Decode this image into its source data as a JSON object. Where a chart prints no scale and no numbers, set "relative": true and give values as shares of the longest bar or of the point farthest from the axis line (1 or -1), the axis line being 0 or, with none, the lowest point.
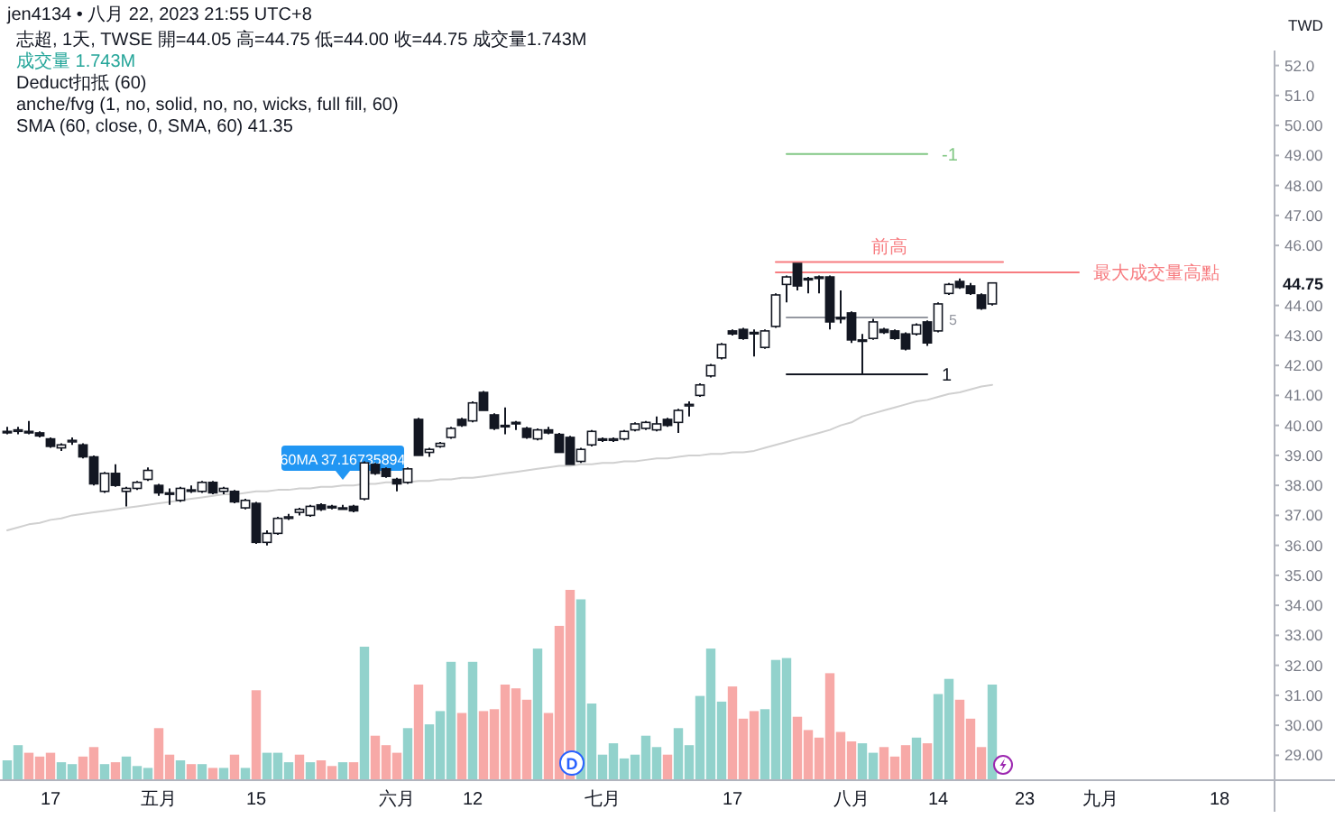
{
  "chart_data": [
    {
      "type": "candlestick",
      "title": "jen4134 • 八月 22, 2023 21:55 UTC+8",
      "subtitle": "志超, 1天, TWSE 開=44.05 高=44.75 低=44.00 收=44.75 成交量1.743M",
      "ylabel": "TWD",
      "categories": [
        null,
        null,
        null,
        null,
        "17",
        null,
        null,
        null,
        null,
        null,
        null,
        null,
        null,
        null,
        "五月",
        null,
        null,
        null,
        null,
        null,
        null,
        null,
        null,
        "15",
        null,
        null,
        null,
        null,
        null,
        null,
        null,
        null,
        null,
        null,
        null,
        null,
        "六月",
        null,
        null,
        null,
        null,
        null,
        null,
        "12",
        null,
        null,
        null,
        null,
        null,
        null,
        null,
        null,
        null,
        null,
        null,
        "七月",
        null,
        null,
        null,
        null,
        null,
        null,
        null,
        null,
        null,
        null,
        null,
        "17",
        null,
        null,
        null,
        null,
        null,
        null,
        null,
        null,
        null,
        null,
        "八月",
        null,
        null,
        null,
        null,
        null,
        null,
        null,
        "14",
        null,
        null,
        null,
        null,
        null,
        null,
        null,
        "23",
        null,
        null,
        null,
        null,
        null,
        null,
        "九月",
        null,
        null,
        null,
        null,
        null,
        null,
        null,
        null,
        null,
        null,
        "18",
        null,
        null
      ],
      "ohlc": [
        [
          39.8,
          39.95,
          39.7,
          39.8
        ],
        [
          39.8,
          39.95,
          39.7,
          39.85
        ],
        [
          39.8,
          40.15,
          39.7,
          39.75
        ],
        [
          39.75,
          39.8,
          39.6,
          39.65
        ],
        [
          39.55,
          39.6,
          39.25,
          39.3
        ],
        [
          39.25,
          39.4,
          39.15,
          39.35
        ],
        [
          39.45,
          39.6,
          39.35,
          39.5
        ],
        [
          39.35,
          39.4,
          38.9,
          38.95
        ],
        [
          38.95,
          39.0,
          38.0,
          38.05
        ],
        [
          37.8,
          38.45,
          37.75,
          38.4
        ],
        [
          38.4,
          38.7,
          37.95,
          38.0
        ],
        [
          37.8,
          37.95,
          37.3,
          37.9
        ],
        [
          37.9,
          38.15,
          37.85,
          38.1
        ],
        [
          38.2,
          38.6,
          38.15,
          38.5
        ],
        [
          38.0,
          38.05,
          37.65,
          37.75
        ],
        [
          37.75,
          37.9,
          37.35,
          37.7
        ],
        [
          37.5,
          37.95,
          37.45,
          37.9
        ],
        [
          37.85,
          38.0,
          37.75,
          37.85
        ],
        [
          37.8,
          38.15,
          37.75,
          38.1
        ],
        [
          38.1,
          38.15,
          37.7,
          37.75
        ],
        [
          37.8,
          37.95,
          37.7,
          37.9
        ],
        [
          37.8,
          37.85,
          37.4,
          37.45
        ],
        [
          37.25,
          37.55,
          37.2,
          37.5
        ],
        [
          37.4,
          37.45,
          36.05,
          36.1
        ],
        [
          36.1,
          36.5,
          36.0,
          36.4
        ],
        [
          36.4,
          36.95,
          36.35,
          36.9
        ],
        [
          36.9,
          37.05,
          36.85,
          36.95
        ],
        [
          37.1,
          37.25,
          37.0,
          37.2
        ],
        [
          37.0,
          37.35,
          36.95,
          37.3
        ],
        [
          37.35,
          37.4,
          37.15,
          37.2
        ],
        [
          37.3,
          37.35,
          37.2,
          37.25
        ],
        [
          37.25,
          37.35,
          37.2,
          37.25
        ],
        [
          37.3,
          37.35,
          37.1,
          37.15
        ],
        [
          37.55,
          38.8,
          37.5,
          38.75
        ],
        [
          38.7,
          38.75,
          38.35,
          38.4
        ],
        [
          38.55,
          38.6,
          38.25,
          38.3
        ],
        [
          38.2,
          38.25,
          37.8,
          38.05
        ],
        [
          38.1,
          38.6,
          38.05,
          38.55
        ],
        [
          40.2,
          40.25,
          39.0,
          39.0
        ],
        [
          39.1,
          39.25,
          38.95,
          39.2
        ],
        [
          39.3,
          39.45,
          39.25,
          39.4
        ],
        [
          39.6,
          39.95,
          39.55,
          39.9
        ],
        [
          40.2,
          40.25,
          39.95,
          40.0
        ],
        [
          40.15,
          40.8,
          40.1,
          40.75
        ],
        [
          41.1,
          41.15,
          40.5,
          40.5
        ],
        [
          40.35,
          40.4,
          39.85,
          39.9
        ],
        [
          40.0,
          40.6,
          39.7,
          40.0
        ],
        [
          40.1,
          40.15,
          39.85,
          40.05
        ],
        [
          39.9,
          39.95,
          39.55,
          39.6
        ],
        [
          39.55,
          39.9,
          39.5,
          39.85
        ],
        [
          39.85,
          39.95,
          39.7,
          39.75
        ],
        [
          39.7,
          39.75,
          39.1,
          39.1
        ],
        [
          39.6,
          39.65,
          38.7,
          38.7
        ],
        [
          38.8,
          39.25,
          38.75,
          39.2
        ],
        [
          39.35,
          39.85,
          39.3,
          39.8
        ],
        [
          39.55,
          39.6,
          39.45,
          39.55
        ],
        [
          39.5,
          39.6,
          39.45,
          39.55
        ],
        [
          39.55,
          39.85,
          39.5,
          39.8
        ],
        [
          39.85,
          40.1,
          39.8,
          40.05
        ],
        [
          39.9,
          40.15,
          39.85,
          40.1
        ],
        [
          39.85,
          40.3,
          39.8,
          40.05
        ],
        [
          40.2,
          40.25,
          39.95,
          40.0
        ],
        [
          40.1,
          40.55,
          39.75,
          40.5
        ],
        [
          40.65,
          40.8,
          40.3,
          40.7
        ],
        [
          41.0,
          41.4,
          40.95,
          41.35
        ],
        [
          41.65,
          42.05,
          41.6,
          42.0
        ],
        [
          42.25,
          42.75,
          42.2,
          42.7
        ],
        [
          43.15,
          43.2,
          43.0,
          43.05
        ],
        [
          43.2,
          43.25,
          42.85,
          42.9
        ],
        [
          43.1,
          43.2,
          42.3,
          43.1
        ],
        [
          42.6,
          43.2,
          42.55,
          43.15
        ],
        [
          43.3,
          44.4,
          43.25,
          44.35
        ],
        [
          44.7,
          45.0,
          44.1,
          44.95
        ],
        [
          45.4,
          45.4,
          44.5,
          44.65
        ],
        [
          44.9,
          44.95,
          44.4,
          44.9
        ],
        [
          44.95,
          45.0,
          44.4,
          44.9
        ],
        [
          44.95,
          45.0,
          43.2,
          43.45
        ],
        [
          43.6,
          44.5,
          43.4,
          43.55
        ],
        [
          43.75,
          43.8,
          42.75,
          42.85
        ],
        [
          42.85,
          43.05,
          41.7,
          42.85
        ],
        [
          42.9,
          43.55,
          42.85,
          43.45
        ],
        [
          43.2,
          43.25,
          43.05,
          43.1
        ],
        [
          43.15,
          43.2,
          42.85,
          42.9
        ],
        [
          43.05,
          43.1,
          42.5,
          42.55
        ],
        [
          43.05,
          43.4,
          43.0,
          43.35
        ],
        [
          43.45,
          43.5,
          42.65,
          42.75
        ],
        [
          43.15,
          44.1,
          43.1,
          44.05
        ],
        [
          44.4,
          44.75,
          44.35,
          44.7
        ],
        [
          44.8,
          44.9,
          44.55,
          44.6
        ],
        [
          44.65,
          44.75,
          44.35,
          44.4
        ],
        [
          44.35,
          44.4,
          43.85,
          43.9
        ],
        [
          44.05,
          44.75,
          44.0,
          44.75
        ],
        null,
        null,
        null,
        null,
        null,
        null,
        null,
        null,
        null,
        null,
        null,
        null,
        null,
        null,
        null,
        null,
        null,
        null,
        null,
        null,
        null,
        null,
        null
      ],
      "ylim": [
        28.2,
        52.5
      ],
      "yticks": [
        {
          "value": 29,
          "label": "29.00"
        },
        {
          "value": 30,
          "label": "30.00"
        },
        {
          "value": 31,
          "label": "31.00"
        },
        {
          "value": 32,
          "label": "32.00"
        },
        {
          "value": 33,
          "label": "33.00"
        },
        {
          "value": 34,
          "label": "34.00"
        },
        {
          "value": 35,
          "label": "35.00"
        },
        {
          "value": 36,
          "label": "36.00"
        },
        {
          "value": 37,
          "label": "37.00"
        },
        {
          "value": 38,
          "label": "38.00"
        },
        {
          "value": 39,
          "label": "39.00"
        },
        {
          "value": 40,
          "label": "40.00"
        },
        {
          "value": 41,
          "label": "41.00"
        },
        {
          "value": 42,
          "label": "42.00"
        },
        {
          "value": 43,
          "label": "43.00"
        },
        {
          "value": 44,
          "label": "44.00"
        },
        {
          "value": 46,
          "label": "46.00"
        },
        {
          "value": 47,
          "label": "47.00"
        },
        {
          "value": 48,
          "label": "48.00"
        },
        {
          "value": 49,
          "label": "49.00"
        },
        {
          "value": 50,
          "label": "50.00"
        },
        {
          "value": 51,
          "label": "51.0"
        },
        {
          "value": 52,
          "label": "52.0"
        }
      ],
      "series": [
        {
          "type": "line",
          "color": "#d0d0d0",
          "values": [
            36.5,
            36.6,
            36.7,
            36.75,
            36.85,
            36.9,
            37.0,
            37.05,
            37.1,
            37.15,
            37.2,
            37.25,
            37.3,
            37.35,
            37.4,
            37.45,
            37.5,
            37.55,
            37.6,
            37.65,
            37.7,
            37.7,
            37.75,
            37.8,
            37.8,
            37.85,
            37.85,
            37.9,
            37.9,
            37.95,
            37.95,
            38.0,
            38.0,
            38.05,
            38.05,
            38.1,
            38.1,
            38.1,
            38.15,
            38.15,
            38.2,
            38.2,
            38.25,
            38.25,
            38.3,
            38.35,
            38.4,
            38.45,
            38.5,
            38.55,
            38.6,
            38.65,
            38.65,
            38.7,
            38.7,
            38.75,
            38.75,
            38.8,
            38.8,
            38.85,
            38.9,
            38.9,
            38.95,
            39.0,
            39.0,
            39.05,
            39.05,
            39.1,
            39.1,
            39.15,
            39.25,
            39.35,
            39.45,
            39.55,
            39.65,
            39.75,
            39.85,
            40.0,
            40.1,
            40.3,
            40.4,
            40.5,
            40.6,
            40.7,
            40.8,
            40.85,
            40.95,
            41.05,
            41.1,
            41.2,
            41.3,
            41.35,
            null,
            null,
            null,
            null,
            null,
            null,
            null,
            null,
            null,
            null,
            null,
            null,
            null,
            null,
            null,
            null,
            null,
            null,
            null,
            null,
            null,
            null,
            null
          ]
        },
        {
          "type": "line",
          "name": "前高",
          "color": "#f77c80",
          "values": [
            null,
            null,
            null,
            null,
            null,
            null,
            null,
            null,
            null,
            null,
            null,
            null,
            null,
            null,
            null,
            null,
            null,
            null,
            null,
            null,
            null,
            null,
            null,
            null,
            null,
            null,
            null,
            null,
            null,
            null,
            null,
            null,
            null,
            null,
            null,
            null,
            null,
            null,
            null,
            null,
            null,
            null,
            null,
            null,
            null,
            null,
            null,
            null,
            null,
            null,
            null,
            null,
            null,
            null,
            null,
            null,
            null,
            null,
            null,
            null,
            null,
            null,
            null,
            null,
            null,
            null,
            null,
            null,
            null,
            null,
            null,
            45.45,
            45.45,
            45.45,
            45.45,
            45.45,
            45.45,
            45.45,
            45.45,
            45.45,
            45.45,
            45.45,
            45.45,
            45.45,
            45.45,
            45.45,
            45.45,
            45.45,
            45.45,
            45.45,
            45.45,
            45.45,
            45.45,
            null,
            null,
            null,
            null,
            null,
            null,
            null,
            null,
            null,
            null,
            null,
            null,
            null,
            null,
            null,
            null,
            null,
            null,
            null,
            null,
            null,
            null
          ]
        },
        {
          "type": "line",
          "name": "最大成交量高點",
          "color": "#f77c80",
          "values": [
            null,
            null,
            null,
            null,
            null,
            null,
            null,
            null,
            null,
            null,
            null,
            null,
            null,
            null,
            null,
            null,
            null,
            null,
            null,
            null,
            null,
            null,
            null,
            null,
            null,
            null,
            null,
            null,
            null,
            null,
            null,
            null,
            null,
            null,
            null,
            null,
            null,
            null,
            null,
            null,
            null,
            null,
            null,
            null,
            null,
            null,
            null,
            null,
            null,
            null,
            null,
            null,
            null,
            null,
            null,
            null,
            null,
            null,
            null,
            null,
            null,
            null,
            null,
            null,
            null,
            null,
            null,
            null,
            null,
            null,
            null,
            45.1,
            45.1,
            45.1,
            45.1,
            45.1,
            45.1,
            45.1,
            45.1,
            45.1,
            45.1,
            45.1,
            45.1,
            45.1,
            45.1,
            45.1,
            45.1,
            45.1,
            45.1,
            45.1,
            45.1,
            45.1,
            45.1,
            45.1,
            45.1,
            45.1,
            45.1,
            45.1,
            45.1,
            45.1,
            null,
            null,
            null,
            null,
            null,
            null,
            null,
            null,
            null,
            null,
            null,
            null,
            null,
            null,
            null
          ]
        },
        {
          "type": "line",
          "name": "-1",
          "color": "#81c784",
          "values": [
            null,
            null,
            null,
            null,
            null,
            null,
            null,
            null,
            null,
            null,
            null,
            null,
            null,
            null,
            null,
            null,
            null,
            null,
            null,
            null,
            null,
            null,
            null,
            null,
            null,
            null,
            null,
            null,
            null,
            null,
            null,
            null,
            null,
            null,
            null,
            null,
            null,
            null,
            null,
            null,
            null,
            null,
            null,
            null,
            null,
            null,
            null,
            null,
            null,
            null,
            null,
            null,
            null,
            null,
            null,
            null,
            null,
            null,
            null,
            null,
            null,
            null,
            null,
            null,
            null,
            null,
            null,
            null,
            null,
            null,
            null,
            null,
            49.05,
            49.05,
            49.05,
            49.05,
            49.05,
            49.05,
            49.05,
            49.05,
            49.05,
            49.05,
            49.05,
            49.05,
            49.05,
            49.05,
            null,
            null,
            null,
            null,
            null,
            null,
            null,
            null,
            null,
            null,
            null,
            null,
            null,
            null,
            null,
            null,
            null,
            null,
            null,
            null,
            null,
            null,
            null,
            null,
            null,
            null,
            null,
            null,
            null
          ]
        },
        {
          "type": "line",
          "name": "1",
          "color": "#131722",
          "values": [
            null,
            null,
            null,
            null,
            null,
            null,
            null,
            null,
            null,
            null,
            null,
            null,
            null,
            null,
            null,
            null,
            null,
            null,
            null,
            null,
            null,
            null,
            null,
            null,
            null,
            null,
            null,
            null,
            null,
            null,
            null,
            null,
            null,
            null,
            null,
            null,
            null,
            null,
            null,
            null,
            null,
            null,
            null,
            null,
            null,
            null,
            null,
            null,
            null,
            null,
            null,
            null,
            null,
            null,
            null,
            null,
            null,
            null,
            null,
            null,
            null,
            null,
            null,
            null,
            null,
            null,
            null,
            null,
            null,
            null,
            null,
            null,
            41.7,
            41.7,
            41.7,
            41.7,
            41.7,
            41.7,
            41.7,
            41.7,
            41.7,
            41.7,
            41.7,
            41.7,
            41.7,
            41.7,
            null,
            null,
            null,
            null,
            null,
            null,
            null,
            null,
            null,
            null,
            null,
            null,
            null,
            null,
            null,
            null,
            null,
            null,
            null,
            null,
            null,
            null,
            null,
            null,
            null,
            null,
            null,
            null,
            null
          ]
        },
        {
          "type": "line",
          "color": "#9598a1",
          "values": [
            null,
            null,
            null,
            null,
            null,
            null,
            null,
            null,
            null,
            null,
            null,
            null,
            null,
            null,
            null,
            null,
            null,
            null,
            null,
            null,
            null,
            null,
            null,
            null,
            null,
            null,
            null,
            null,
            null,
            null,
            null,
            null,
            null,
            null,
            null,
            null,
            null,
            null,
            null,
            null,
            null,
            null,
            null,
            null,
            null,
            null,
            null,
            null,
            null,
            null,
            null,
            null,
            null,
            null,
            null,
            null,
            null,
            null,
            null,
            null,
            null,
            null,
            null,
            null,
            null,
            null,
            null,
            null,
            null,
            null,
            null,
            null,
            43.6,
            43.6,
            43.6,
            43.6,
            43.6,
            43.6,
            43.6,
            43.6,
            43.6,
            43.6,
            43.6,
            43.6,
            43.6,
            43.6,
            null,
            null,
            null,
            null,
            null,
            null,
            null,
            null,
            null,
            null,
            null,
            null,
            null,
            null,
            null,
            null,
            null,
            null,
            null,
            null,
            null,
            null,
            null,
            null,
            null,
            null,
            null,
            null,
            null
          ]
        }
      ],
      "annotations": [
        "成交量 1.743M",
        "Deduct扣抵 (60)",
        "anche/fvg (1, no, solid, no, no, wicks, full fill, 60)",
        "SMA (60, close, 0, SMA, 60) 41.35",
        "60MA 37.16735894",
        "44.75",
        "D",
        "5"
      ]
    },
    {
      "type": "bar",
      "relative": true,
      "categories": [
        null,
        null,
        null,
        null,
        null,
        null,
        null,
        null,
        null,
        null,
        null,
        null,
        null,
        null,
        null,
        null,
        null,
        null,
        null,
        null,
        null,
        null,
        null,
        null,
        null,
        null,
        null,
        null,
        null,
        null,
        null,
        null,
        null,
        null,
        null,
        null,
        null,
        null,
        null,
        null,
        null,
        null,
        null,
        null,
        null,
        null,
        null,
        null,
        null,
        null,
        null,
        null,
        null,
        null,
        null,
        null,
        null,
        null,
        null,
        null,
        null,
        null,
        null,
        null,
        null,
        null,
        null,
        null,
        null,
        null,
        null,
        null,
        null,
        null,
        null,
        null,
        null,
        null,
        null,
        null,
        null,
        null,
        null,
        null,
        null,
        null,
        null,
        null,
        null,
        null,
        null,
        null
      ],
      "values": [
        0.1,
        0.18,
        0.14,
        0.12,
        0.14,
        0.09,
        0.08,
        0.12,
        0.17,
        0.08,
        0.09,
        0.12,
        0.07,
        0.06,
        0.27,
        0.13,
        0.1,
        0.08,
        0.08,
        0.06,
        0.06,
        0.13,
        0.06,
        0.47,
        0.14,
        0.14,
        0.09,
        0.13,
        0.09,
        0.1,
        0.07,
        0.09,
        0.09,
        0.7,
        0.23,
        0.18,
        0.14,
        0.27,
        0.5,
        0.29,
        0.36,
        0.62,
        0.35,
        0.62,
        0.36,
        0.37,
        0.5,
        0.48,
        0.42,
        0.69,
        0.35,
        0.81,
        1,
        0.95,
        0.4,
        0.13,
        0.19,
        0.11,
        0.13,
        0.23,
        0.17,
        0.13,
        0.27,
        0.18,
        0.44,
        0.69,
        0.41,
        0.49,
        0.32,
        0.36,
        0.37,
        0.63,
        0.64,
        0.33,
        0.26,
        0.22,
        0.56,
        0.25,
        0.2,
        0.19,
        0.14,
        0.17,
        0.12,
        0.18,
        0.22,
        0.19,
        0.45,
        0.53,
        0.42,
        0.32,
        0.17,
        0.5
      ],
      "colors": [
        "#92d2cc",
        "#92d2cc",
        "#f7a9a7",
        "#f7a9a7",
        "#f7a9a7",
        "#92d2cc",
        "#92d2cc",
        "#f7a9a7",
        "#f7a9a7",
        "#92d2cc",
        "#f7a9a7",
        "#92d2cc",
        "#92d2cc",
        "#92d2cc",
        "#f7a9a7",
        "#f7a9a7",
        "#92d2cc",
        "#f7a9a7",
        "#92d2cc",
        "#f7a9a7",
        "#92d2cc",
        "#f7a9a7",
        "#92d2cc",
        "#f7a9a7",
        "#92d2cc",
        "#92d2cc",
        "#92d2cc",
        "#f7a9a7",
        "#92d2cc",
        "#f7a9a7",
        "#f7a9a7",
        "#92d2cc",
        "#f7a9a7",
        "#92d2cc",
        "#f7a9a7",
        "#f7a9a7",
        "#f7a9a7",
        "#92d2cc",
        "#f7a9a7",
        "#92d2cc",
        "#92d2cc",
        "#92d2cc",
        "#f7a9a7",
        "#92d2cc",
        "#f7a9a7",
        "#f7a9a7",
        "#f7a9a7",
        "#f7a9a7",
        "#f7a9a7",
        "#92d2cc",
        "#f7a9a7",
        "#f7a9a7",
        "#f7a9a7",
        "#92d2cc",
        "#92d2cc",
        "#92d2cc",
        "#92d2cc",
        "#92d2cc",
        "#92d2cc",
        "#92d2cc",
        "#92d2cc",
        "#f7a9a7",
        "#92d2cc",
        "#92d2cc",
        "#92d2cc",
        "#92d2cc",
        "#92d2cc",
        "#f7a9a7",
        "#f7a9a7",
        "#f7a9a7",
        "#92d2cc",
        "#92d2cc",
        "#92d2cc",
        "#f7a9a7",
        "#f7a9a7",
        "#f7a9a7",
        "#f7a9a7",
        "#f7a9a7",
        "#f7a9a7",
        "#92d2cc",
        "#92d2cc",
        "#f7a9a7",
        "#f7a9a7",
        "#f7a9a7",
        "#92d2cc",
        "#f7a9a7",
        "#92d2cc",
        "#92d2cc",
        "#f7a9a7",
        "#f7a9a7",
        "#f7a9a7",
        "#92d2cc"
      ]
    }
  ]
}
